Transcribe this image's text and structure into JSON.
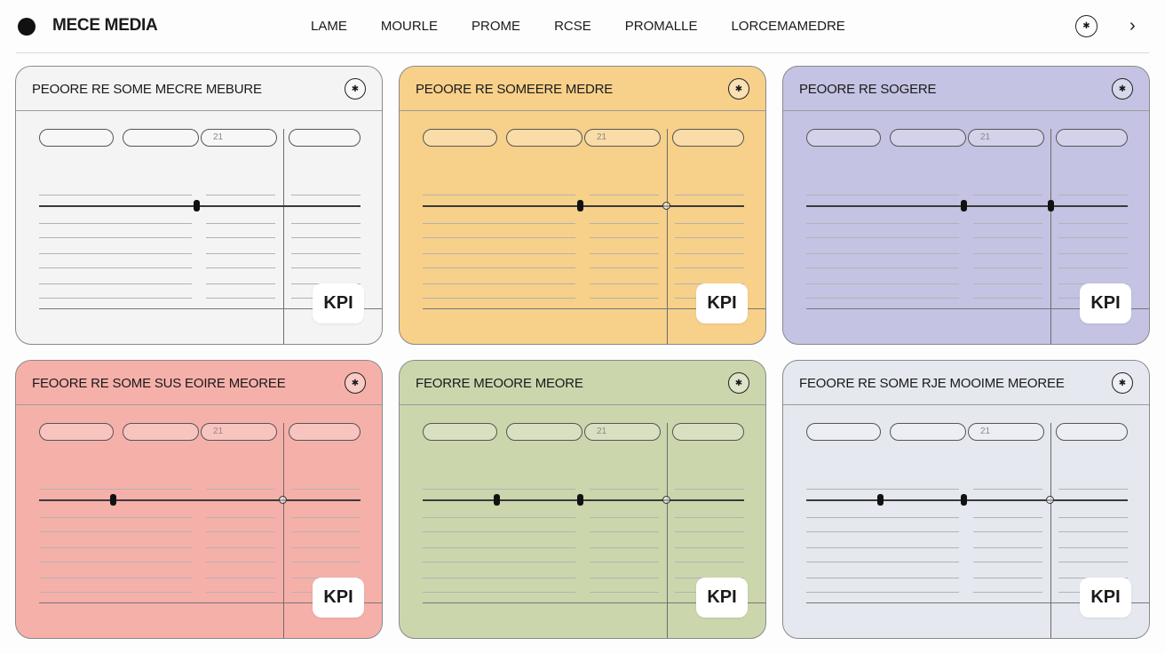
{
  "brand": {
    "name": "MECE MEDIA",
    "icon": "circle-logo-icon"
  },
  "nav": [
    "LAME",
    "MOURLE",
    "PROME",
    "RCSE",
    "PROMALLE",
    "LORCEMAMEDRE"
  ],
  "topbar": {
    "icon_button_glyph": "✱",
    "chevron": "›"
  },
  "cards": [
    {
      "title": "PEOORE RE SOME MECRE MEBURE",
      "bg": "#f4f4f4",
      "pill_text": "21",
      "star": "✱",
      "handles": [
        0.49
      ],
      "marker": false,
      "kpi": "KPI"
    },
    {
      "title": "PEOORE RE SOMEERE MEDRE",
      "bg": "#f7d08a",
      "pill_text": "21",
      "star": "✱",
      "handles": [
        0.49
      ],
      "marker": true,
      "kpi": "KPI"
    },
    {
      "title": "PEOORE RE SOGERE",
      "bg": "#c4c3e3",
      "pill_text": "21",
      "star": "✱",
      "handles": [
        0.49,
        0.76
      ],
      "marker": false,
      "kpi": "KPI"
    },
    {
      "title": "FEOORE RE SOME SUS EOIRE MEOREE",
      "bg": "#f6b0aa",
      "pill_text": "21",
      "star": "✱",
      "handles": [
        0.23
      ],
      "marker": true,
      "kpi": "KPI"
    },
    {
      "title": "FEORRE MEOORE MEORE",
      "bg": "#cbd6ad",
      "pill_text": "21",
      "star": "✱",
      "handles": [
        0.23,
        0.49
      ],
      "marker": true,
      "kpi": "KPI"
    },
    {
      "title": "FEOORE RE SOME RJE MOOIME MEOREE",
      "bg": "#e6e8f0",
      "pill_text": "21",
      "star": "✱",
      "handles": [
        0.23,
        0.49
      ],
      "marker": true,
      "kpi": "KPI"
    }
  ]
}
